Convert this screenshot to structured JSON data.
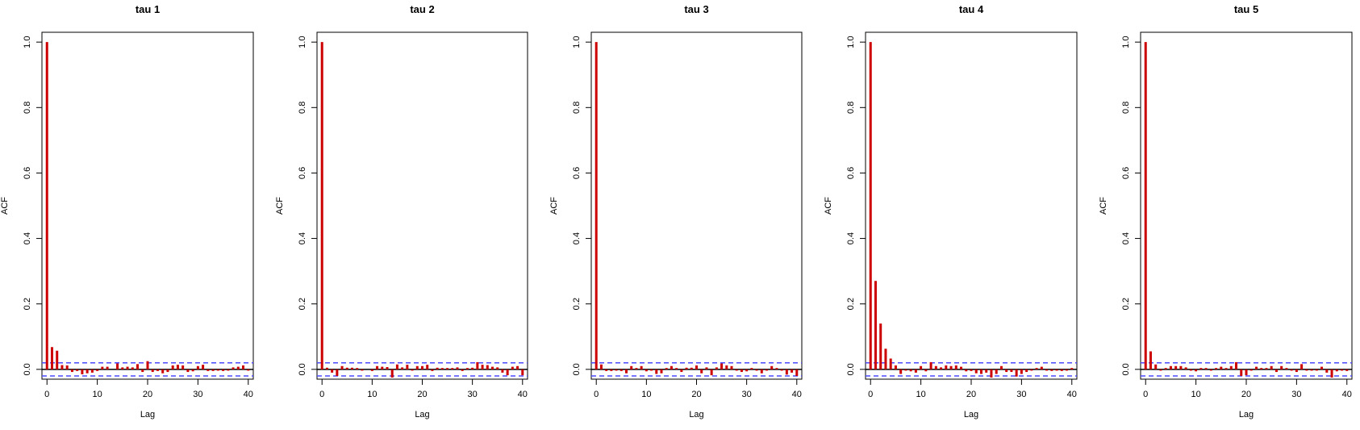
{
  "colors": {
    "bar": "#cc0000",
    "confidence_band": "#4a4aff",
    "zero_line": "#000000",
    "axis": "#000000"
  },
  "chart_data": [
    {
      "type": "bar",
      "title": "tau 1",
      "xlabel": "Lag",
      "ylabel": "ACF",
      "xlim": [
        -1,
        41
      ],
      "ylim": [
        -0.03,
        1.03
      ],
      "xticks": [
        0,
        10,
        20,
        30,
        40
      ],
      "yticks": [
        0.0,
        0.2,
        0.4,
        0.6,
        0.8,
        1.0
      ],
      "confidence_band": 0.02,
      "x": [
        0,
        1,
        2,
        3,
        4,
        5,
        6,
        7,
        8,
        9,
        10,
        11,
        12,
        13,
        14,
        15,
        16,
        17,
        18,
        19,
        20,
        21,
        22,
        23,
        24,
        25,
        26,
        27,
        28,
        29,
        30,
        31,
        32,
        33,
        34,
        35,
        36,
        37,
        38,
        39,
        40
      ],
      "values": [
        1.0,
        0.068,
        0.057,
        0.013,
        0.012,
        -0.008,
        -0.005,
        -0.015,
        -0.012,
        -0.01,
        -0.005,
        0.008,
        0.008,
        0.0,
        0.018,
        0.006,
        0.008,
        0.006,
        0.016,
        -0.008,
        0.025,
        -0.008,
        -0.005,
        -0.012,
        -0.008,
        0.012,
        0.014,
        0.012,
        -0.008,
        -0.006,
        0.01,
        0.014,
        -0.005,
        -0.005,
        -0.004,
        -0.005,
        -0.004,
        0.006,
        0.008,
        0.012,
        -0.004
      ]
    },
    {
      "type": "bar",
      "title": "tau 2",
      "xlabel": "Lag",
      "ylabel": "ACF",
      "xlim": [
        -1,
        41
      ],
      "ylim": [
        -0.03,
        1.03
      ],
      "xticks": [
        0,
        10,
        20,
        30,
        40
      ],
      "yticks": [
        0.0,
        0.2,
        0.4,
        0.6,
        0.8,
        1.0
      ],
      "confidence_band": 0.02,
      "x": [
        0,
        1,
        2,
        3,
        4,
        5,
        6,
        7,
        8,
        9,
        10,
        11,
        12,
        13,
        14,
        15,
        16,
        17,
        18,
        19,
        20,
        21,
        22,
        23,
        24,
        25,
        26,
        27,
        28,
        29,
        30,
        31,
        32,
        33,
        34,
        35,
        36,
        37,
        38,
        39,
        40
      ],
      "values": [
        1.0,
        0.005,
        -0.01,
        -0.02,
        0.01,
        0.005,
        0.005,
        0.004,
        -0.004,
        0.0,
        -0.005,
        0.01,
        0.008,
        0.007,
        -0.025,
        0.015,
        0.006,
        0.014,
        -0.004,
        0.01,
        0.01,
        0.014,
        -0.005,
        0.005,
        0.004,
        0.004,
        0.004,
        0.006,
        -0.005,
        0.004,
        0.005,
        0.022,
        0.014,
        0.013,
        0.008,
        0.006,
        -0.01,
        -0.018,
        0.008,
        0.01,
        -0.018
      ]
    },
    {
      "type": "bar",
      "title": "tau 3",
      "xlabel": "Lag",
      "ylabel": "ACF",
      "xlim": [
        -1,
        41
      ],
      "ylim": [
        -0.03,
        1.03
      ],
      "xticks": [
        0,
        10,
        20,
        30,
        40
      ],
      "yticks": [
        0.0,
        0.2,
        0.4,
        0.6,
        0.8,
        1.0
      ],
      "confidence_band": 0.02,
      "x": [
        0,
        1,
        2,
        3,
        4,
        5,
        6,
        7,
        8,
        9,
        10,
        11,
        12,
        13,
        14,
        15,
        16,
        17,
        18,
        19,
        20,
        21,
        22,
        23,
        24,
        25,
        26,
        27,
        28,
        29,
        30,
        31,
        32,
        33,
        34,
        35,
        36,
        37,
        38,
        39,
        40
      ],
      "values": [
        1.0,
        0.015,
        -0.005,
        -0.005,
        -0.004,
        -0.005,
        -0.012,
        0.01,
        0.004,
        0.01,
        -0.006,
        -0.004,
        -0.014,
        -0.012,
        0.004,
        0.01,
        0.004,
        -0.008,
        0.005,
        0.005,
        0.012,
        -0.012,
        0.006,
        -0.018,
        0.006,
        0.018,
        0.012,
        0.01,
        -0.004,
        -0.008,
        -0.006,
        0.004,
        -0.004,
        -0.012,
        -0.004,
        0.01,
        0.004,
        -0.004,
        -0.016,
        -0.01,
        -0.02
      ]
    },
    {
      "type": "bar",
      "title": "tau 4",
      "xlabel": "Lag",
      "ylabel": "ACF",
      "xlim": [
        -1,
        41
      ],
      "ylim": [
        -0.03,
        1.03
      ],
      "xticks": [
        0,
        10,
        20,
        30,
        40
      ],
      "yticks": [
        0.0,
        0.2,
        0.4,
        0.6,
        0.8,
        1.0
      ],
      "confidence_band": 0.02,
      "x": [
        0,
        1,
        2,
        3,
        4,
        5,
        6,
        7,
        8,
        9,
        10,
        11,
        12,
        13,
        14,
        15,
        16,
        17,
        18,
        19,
        20,
        21,
        22,
        23,
        24,
        25,
        26,
        27,
        28,
        29,
        30,
        31,
        32,
        33,
        34,
        35,
        36,
        37,
        38,
        39,
        40
      ],
      "values": [
        1.0,
        0.27,
        0.14,
        0.063,
        0.033,
        0.012,
        -0.014,
        -0.004,
        -0.006,
        -0.01,
        0.01,
        -0.006,
        0.022,
        0.01,
        0.006,
        0.012,
        0.01,
        0.012,
        0.008,
        -0.006,
        -0.005,
        -0.012,
        -0.014,
        -0.01,
        -0.025,
        -0.014,
        0.01,
        -0.008,
        -0.008,
        -0.022,
        -0.014,
        -0.008,
        -0.004,
        0.004,
        0.008,
        -0.004,
        -0.005,
        -0.004,
        -0.005,
        -0.004,
        0.004
      ]
    },
    {
      "type": "bar",
      "title": "tau 5",
      "xlabel": "Lag",
      "ylabel": "ACF",
      "xlim": [
        -1,
        41
      ],
      "ylim": [
        -0.03,
        1.03
      ],
      "xticks": [
        0,
        10,
        20,
        30,
        40
      ],
      "yticks": [
        0.0,
        0.2,
        0.4,
        0.6,
        0.8,
        1.0
      ],
      "confidence_band": 0.02,
      "x": [
        0,
        1,
        2,
        3,
        4,
        5,
        6,
        7,
        8,
        9,
        10,
        11,
        12,
        13,
        14,
        15,
        16,
        17,
        18,
        19,
        20,
        21,
        22,
        23,
        24,
        25,
        26,
        27,
        28,
        29,
        30,
        31,
        32,
        33,
        34,
        35,
        36,
        37,
        38,
        39,
        40
      ],
      "values": [
        1.0,
        0.055,
        0.015,
        -0.004,
        0.004,
        0.01,
        0.01,
        0.01,
        0.006,
        -0.004,
        -0.006,
        0.004,
        0.004,
        -0.004,
        0.004,
        0.008,
        0.004,
        0.01,
        0.022,
        -0.02,
        -0.018,
        -0.004,
        0.008,
        0.004,
        0.004,
        0.01,
        -0.008,
        0.01,
        0.004,
        -0.004,
        -0.008,
        0.016,
        -0.004,
        -0.004,
        -0.004,
        0.008,
        -0.01,
        -0.025,
        -0.006,
        -0.004,
        -0.005
      ]
    }
  ]
}
